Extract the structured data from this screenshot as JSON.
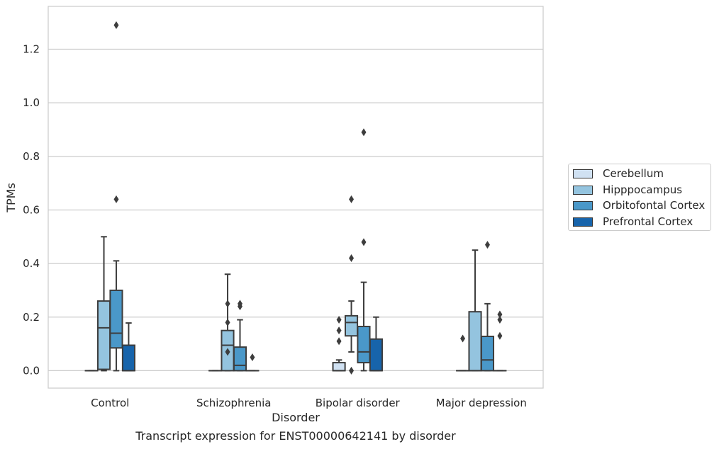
{
  "chart_data": {
    "type": "box",
    "title": "",
    "caption": "Transcript expression for ENST00000642141 by disorder",
    "xlabel": "Disorder",
    "ylabel": "TPMs",
    "ylim": [
      -0.065,
      1.36
    ],
    "yticks": [
      "0.0",
      "0.2",
      "0.4",
      "0.6",
      "0.8",
      "1.0",
      "1.2"
    ],
    "grid": true,
    "legend_position": "right",
    "categories": [
      "Control",
      "Schizophrenia",
      "Bipolar disorder",
      "Major depression"
    ],
    "series": [
      {
        "name": "Cerebellum",
        "color": "#d0e1f2",
        "boxes": [
          {
            "q1": 0.0,
            "median": 0.0,
            "q3": 0.0,
            "whislo": 0.0,
            "whishi": 0.0,
            "fliers": []
          },
          {
            "q1": 0.0,
            "median": 0.0,
            "q3": 0.0,
            "whislo": 0.0,
            "whishi": 0.0,
            "fliers": []
          },
          {
            "q1": 0.0,
            "median": 0.0,
            "q3": 0.03,
            "whislo": 0.0,
            "whishi": 0.04,
            "fliers": [
              0.19,
              0.15,
              0.11
            ]
          },
          {
            "q1": 0.0,
            "median": 0.0,
            "q3": 0.0,
            "whislo": 0.0,
            "whishi": 0.0,
            "fliers": [
              0.12
            ]
          }
        ]
      },
      {
        "name": "Hipppocampus",
        "color": "#94c4df",
        "boxes": [
          {
            "q1": 0.005,
            "median": 0.16,
            "q3": 0.26,
            "whislo": 0.0,
            "whishi": 0.5,
            "fliers": []
          },
          {
            "q1": 0.0,
            "median": 0.095,
            "q3": 0.15,
            "whislo": 0.0,
            "whishi": 0.36,
            "fliers": [
              0.25,
              0.18,
              0.07
            ]
          },
          {
            "q1": 0.13,
            "median": 0.18,
            "q3": 0.205,
            "whislo": 0.07,
            "whishi": 0.26,
            "fliers": [
              0.64,
              0.42,
              0.0
            ]
          },
          {
            "q1": 0.0,
            "median": 0.0,
            "q3": 0.22,
            "whislo": 0.0,
            "whishi": 0.45,
            "fliers": []
          }
        ]
      },
      {
        "name": "Orbitofontal Cortex",
        "color": "#4a98c9",
        "boxes": [
          {
            "q1": 0.085,
            "median": 0.14,
            "q3": 0.3,
            "whislo": 0.0,
            "whishi": 0.41,
            "fliers": [
              1.29,
              0.64
            ]
          },
          {
            "q1": 0.0,
            "median": 0.02,
            "q3": 0.088,
            "whislo": 0.0,
            "whishi": 0.19,
            "fliers": [
              0.25,
              0.24
            ]
          },
          {
            "q1": 0.03,
            "median": 0.07,
            "q3": 0.165,
            "whislo": 0.0,
            "whishi": 0.33,
            "fliers": [
              0.89,
              0.48
            ]
          },
          {
            "q1": 0.0,
            "median": 0.04,
            "q3": 0.128,
            "whislo": 0.0,
            "whishi": 0.25,
            "fliers": [
              0.47
            ]
          }
        ]
      },
      {
        "name": "Prefrontal Cortex",
        "color": "#1764ab",
        "boxes": [
          {
            "q1": 0.0,
            "median": 0.0,
            "q3": 0.095,
            "whislo": 0.0,
            "whishi": 0.178,
            "fliers": []
          },
          {
            "q1": 0.0,
            "median": 0.0,
            "q3": 0.0,
            "whislo": 0.0,
            "whishi": 0.0,
            "fliers": [
              0.05
            ]
          },
          {
            "q1": 0.0,
            "median": 0.0,
            "q3": 0.118,
            "whislo": 0.0,
            "whishi": 0.2,
            "fliers": []
          },
          {
            "q1": 0.0,
            "median": 0.0,
            "q3": 0.0,
            "whislo": 0.0,
            "whishi": 0.0,
            "fliers": [
              0.21,
              0.19,
              0.13
            ]
          }
        ]
      }
    ]
  }
}
